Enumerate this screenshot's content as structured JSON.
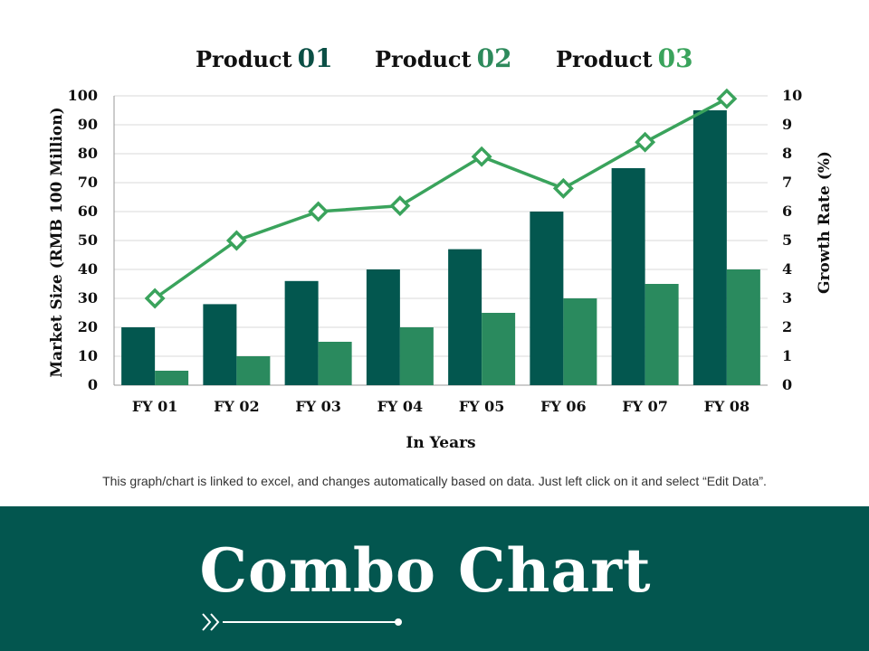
{
  "legend": {
    "items": [
      {
        "label": "Product",
        "num": "01",
        "color": "#0b4f45"
      },
      {
        "label": "Product",
        "num": "02",
        "color": "#2e8a5c"
      },
      {
        "label": "Product",
        "num": "03",
        "color": "#3aa35c"
      }
    ]
  },
  "chart_data": {
    "type": "bar",
    "title": "",
    "categories": [
      "FY 01",
      "FY 02",
      "FY 03",
      "FY 04",
      "FY 05",
      "FY 06",
      "FY 07",
      "FY 08"
    ],
    "xlabel": "In Years",
    "ylabel": "Market Size (RMB 100 Million)",
    "y2label": "Growth Rate (%)",
    "ylim": [
      0,
      100
    ],
    "y2lim": [
      0,
      10
    ],
    "yticks": [
      "0",
      "10",
      "20",
      "30",
      "40",
      "50",
      "60",
      "70",
      "80",
      "90",
      "100"
    ],
    "y2ticks": [
      "0",
      "1",
      "2",
      "3",
      "4",
      "5",
      "6",
      "7",
      "8",
      "9",
      "10"
    ],
    "grid": true,
    "legend_position": "top",
    "series": [
      {
        "type": "bar",
        "axis": "left",
        "color": "#03574f",
        "values": [
          20,
          28,
          36,
          40,
          47,
          60,
          75,
          95
        ]
      },
      {
        "type": "bar",
        "axis": "left",
        "color": "#2a8a5e",
        "values": [
          5,
          10,
          15,
          20,
          25,
          30,
          35,
          40
        ]
      },
      {
        "type": "line",
        "axis": "right",
        "color": "#3aa35c",
        "marker": "diamond",
        "values": [
          3.0,
          5.0,
          6.0,
          6.2,
          7.9,
          6.8,
          8.4,
          9.9
        ]
      }
    ]
  },
  "footnote": "This graph/chart is linked to excel, and changes automatically  based on data. Just left click on it and select “Edit Data”.",
  "banner": {
    "title": "Combo Chart",
    "background": "#03564f"
  }
}
